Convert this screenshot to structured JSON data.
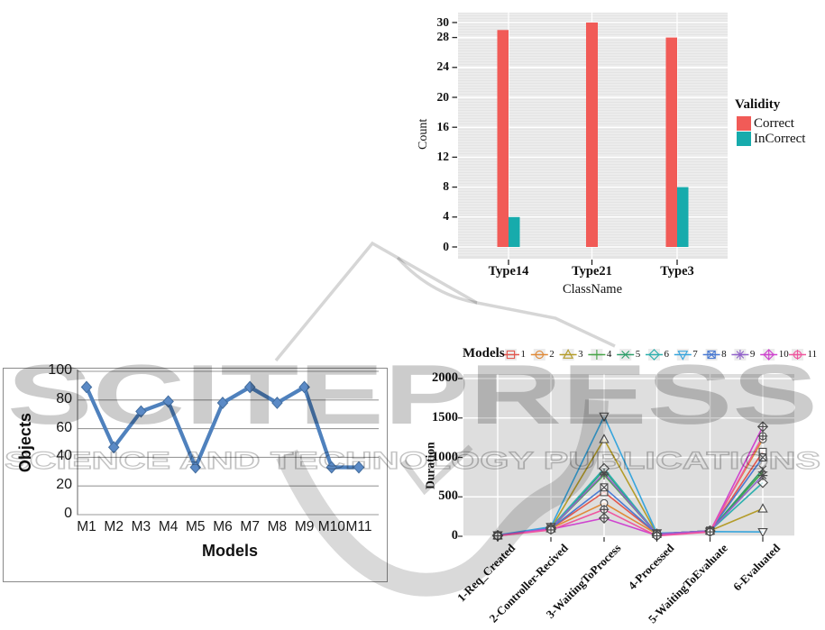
{
  "watermark": {
    "logo_text": "SCITEPRESS",
    "subtitle_text": "SCIENCE AND TECHNOLOGY PUBLICATIONS"
  },
  "chart_data": [
    {
      "id": "validity-by-classname",
      "type": "bar",
      "title": "",
      "xlabel": "ClassName",
      "ylabel": "Count",
      "legend_title": "Validity",
      "legend_position": "right",
      "categories": [
        "Type14",
        "Type21",
        "Type3"
      ],
      "series": [
        {
          "name": "Correct",
          "color": "#f15b57",
          "values": [
            29,
            30,
            28
          ]
        },
        {
          "name": "InCorrect",
          "color": "#17abac",
          "values": [
            4,
            0,
            8
          ]
        }
      ],
      "yticks": [
        0,
        4,
        8,
        12,
        16,
        20,
        24,
        28,
        30
      ],
      "ylim": [
        0,
        31.5
      ],
      "panel_bg": "#e4e4e4",
      "grid": "white striped horizontal lines and white vertical category lines"
    },
    {
      "id": "objects-per-model",
      "type": "line",
      "title": "",
      "xlabel": "Models",
      "ylabel": "Objects",
      "categories": [
        "M1",
        "M2",
        "M3",
        "M4",
        "M5",
        "M6",
        "M7",
        "M8",
        "M9",
        "M10",
        "M11"
      ],
      "series": [
        {
          "name": "Objects",
          "color": "#4f81bd",
          "marker": "diamond",
          "values": [
            89,
            47,
            72,
            79,
            33,
            78,
            89,
            78,
            89,
            33,
            33
          ]
        }
      ],
      "yticks": [
        0,
        20,
        40,
        60,
        80,
        100
      ],
      "ylim": [
        0,
        100
      ],
      "grid": "horizontal gray lines"
    },
    {
      "id": "duration-by-lifecycle-state",
      "type": "line",
      "title": "",
      "xlabel": "",
      "ylabel": "Duration",
      "legend_title": "Models",
      "legend_position": "top",
      "categories": [
        "1-Req_Created",
        "2-Controller-Recived",
        "3-WaitingToProcess",
        "4-Processed",
        "5-WaitingToEvaluate",
        "6-Evaluated"
      ],
      "yticks": [
        0,
        500,
        1000,
        1500,
        2000
      ],
      "ylim": [
        0,
        2000
      ],
      "panel_bg": "#dedede",
      "series": [
        {
          "name": "1",
          "marker": "square",
          "color": "#e2574e",
          "values": [
            10,
            100,
            560,
            30,
            70,
            1070
          ]
        },
        {
          "name": "2",
          "marker": "circle",
          "color": "#e08a38",
          "values": [
            10,
            100,
            420,
            30,
            70,
            1230
          ]
        },
        {
          "name": "3",
          "marker": "triangle-up",
          "color": "#b49c2a",
          "values": [
            10,
            100,
            1230,
            30,
            70,
            350
          ]
        },
        {
          "name": "4",
          "marker": "plus",
          "color": "#49a449",
          "values": [
            10,
            100,
            780,
            30,
            70,
            815
          ]
        },
        {
          "name": "5",
          "marker": "x",
          "color": "#2e9e6a",
          "values": [
            10,
            100,
            840,
            30,
            70,
            850
          ]
        },
        {
          "name": "6",
          "marker": "diamond",
          "color": "#2eb0ae",
          "values": [
            12,
            110,
            860,
            30,
            70,
            680
          ]
        },
        {
          "name": "7",
          "marker": "triangle-down",
          "color": "#38a5dc",
          "values": [
            15,
            120,
            1520,
            40,
            60,
            55
          ]
        },
        {
          "name": "8",
          "marker": "square-x",
          "color": "#4a7ad2",
          "values": [
            10,
            100,
            620,
            30,
            70,
            1000
          ]
        },
        {
          "name": "9",
          "marker": "asterisk",
          "color": "#9263ca",
          "values": [
            10,
            100,
            800,
            30,
            70,
            770
          ]
        },
        {
          "name": "10",
          "marker": "diamond-plus",
          "color": "#cf44cf",
          "values": [
            5,
            90,
            230,
            10,
            60,
            1390
          ]
        },
        {
          "name": "11",
          "marker": "circle-plus",
          "color": "#ef579e",
          "values": [
            5,
            80,
            340,
            5,
            55,
            1270
          ]
        }
      ]
    }
  ]
}
